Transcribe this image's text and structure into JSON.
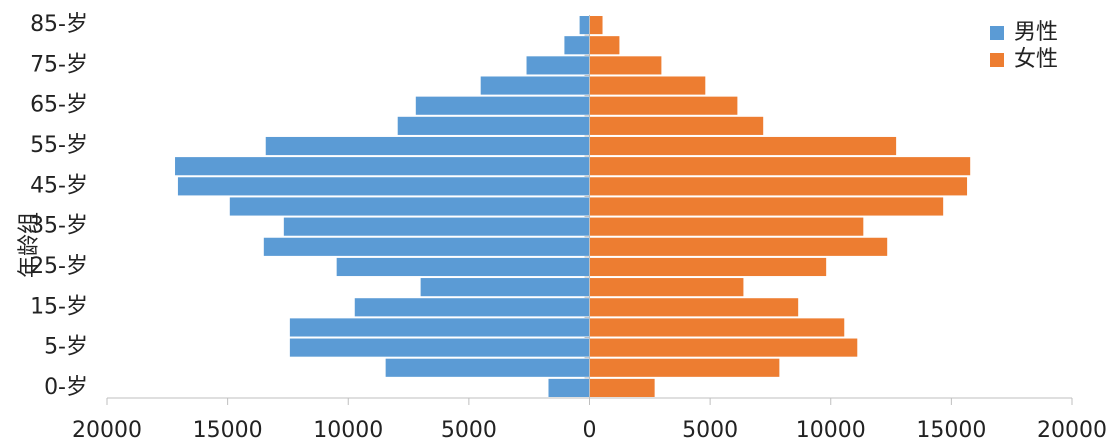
{
  "chart_data": {
    "type": "pyramid",
    "y_axis_label": "年龄组",
    "categories": [
      "0-岁",
      null,
      "5-岁",
      null,
      "15-岁",
      null,
      "25-岁",
      null,
      "35-岁",
      null,
      "45-岁",
      null,
      "55-岁",
      null,
      "65-岁",
      null,
      "75-岁",
      null,
      "85-岁"
    ],
    "series": [
      {
        "name": "男性",
        "color": "#5b9bd5",
        "values": [
          -1700,
          -8450,
          -12420,
          -12420,
          -9730,
          -7000,
          -10480,
          -13500,
          -12670,
          -14910,
          -17060,
          -17180,
          -13420,
          -7950,
          -7200,
          -4510,
          -2610,
          -1040,
          -410
        ]
      },
      {
        "name": "女性",
        "color": "#ed7d31",
        "values": [
          2700,
          7870,
          11100,
          10560,
          8650,
          6380,
          9810,
          12340,
          11350,
          14660,
          15650,
          15780,
          12710,
          7200,
          6130,
          4800,
          2980,
          1240,
          540
        ]
      }
    ],
    "xlim": [
      -20000,
      20000
    ],
    "xticks": [
      {
        "value": -20000,
        "label": "20000"
      },
      {
        "value": -15000,
        "label": "15000"
      },
      {
        "value": -10000,
        "label": "10000"
      },
      {
        "value": -5000,
        "label": "5000"
      },
      0,
      5000,
      10000,
      15000,
      20000
    ],
    "legend": "top-right"
  }
}
